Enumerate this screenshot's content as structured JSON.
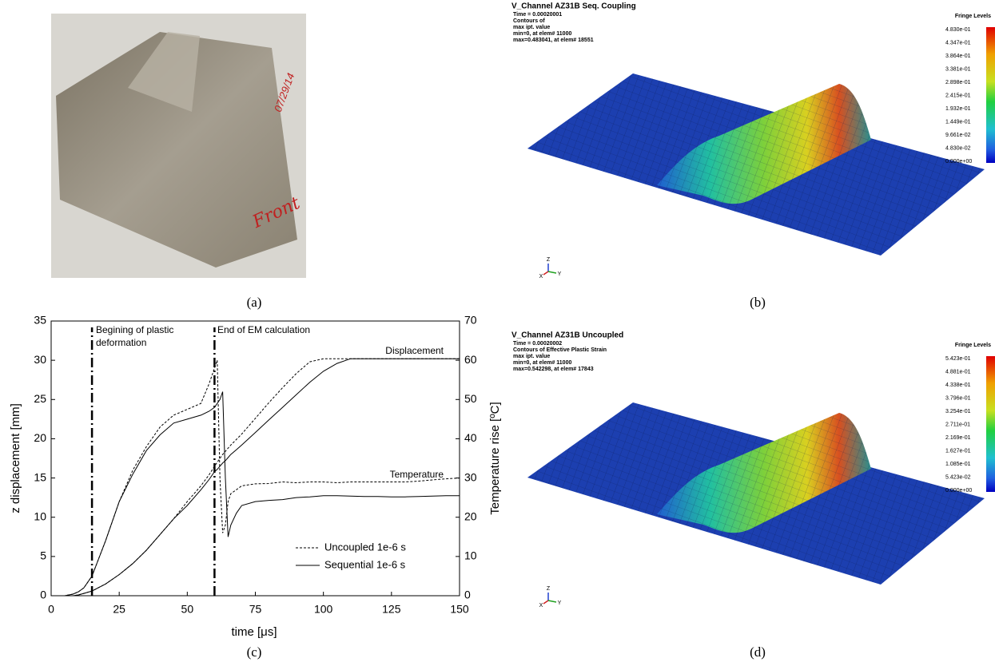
{
  "chart_data": {
    "type": "line",
    "caption": "(c)",
    "xlabel": "time [μs]",
    "ylabel": "z displacement [mm]",
    "y2label": "Temperature rise [ºC]",
    "xlim": [
      0,
      150
    ],
    "xticks": [
      0,
      25,
      50,
      75,
      100,
      125,
      150
    ],
    "ylim": [
      0,
      35
    ],
    "yticks": [
      0,
      5,
      10,
      15,
      20,
      25,
      30,
      35
    ],
    "y2lim": [
      0,
      70
    ],
    "y2ticks": [
      0,
      10,
      20,
      30,
      40,
      50,
      60,
      70
    ],
    "vlines": [
      15,
      60
    ],
    "annotations": [
      {
        "lines": [
          "Begining of plastic",
          "deformation"
        ]
      },
      {
        "lines": [
          "End of EM calculation"
        ]
      },
      {
        "lines": [
          "Displacement"
        ]
      },
      {
        "lines": [
          "Temperature"
        ]
      }
    ],
    "x": [
      0,
      5,
      8,
      10,
      12,
      15,
      20,
      25,
      30,
      35,
      40,
      45,
      50,
      55,
      58,
      60,
      61,
      62,
      63,
      64,
      65,
      66,
      68,
      70,
      75,
      80,
      85,
      90,
      95,
      100,
      105,
      110,
      115,
      120,
      125,
      130,
      135,
      140,
      145,
      150
    ],
    "series": [
      {
        "name": "Uncoupled 1e-6 s",
        "color": "#000000",
        "dash": "dashed",
        "values": [
          0,
          0,
          0,
          0.1,
          0.3,
          0.6,
          1.5,
          2.7,
          4.1,
          5.8,
          7.8,
          9.8,
          12,
          14,
          15.4,
          16.5,
          17,
          17.5,
          18,
          18.4,
          18.8,
          19.2,
          19.9,
          20.6,
          22.6,
          24.6,
          26.5,
          28.3,
          29.8,
          30.2,
          30.2,
          30.2,
          30.2,
          30.2,
          30.2,
          30.2,
          30.2,
          30.2,
          30.2,
          30.2
        ],
        "y2_values": [
          0,
          0,
          0.4,
          1,
          2,
          5,
          14,
          24,
          32,
          38,
          43,
          46,
          47.5,
          49,
          54,
          58,
          60,
          30,
          16,
          18,
          24,
          26,
          27,
          28,
          28.5,
          28.6,
          29,
          28.8,
          29,
          29,
          28.8,
          29,
          29,
          29,
          29,
          29,
          29.2,
          29.5,
          29.8,
          30
        ]
      },
      {
        "name": "Sequential 1e-6 s",
        "color": "#000000",
        "dash": "solid",
        "values": [
          0,
          0,
          0,
          0.1,
          0.3,
          0.6,
          1.5,
          2.7,
          4.1,
          5.8,
          7.8,
          9.8,
          11.5,
          13.5,
          14.8,
          15.8,
          16.1,
          16.5,
          16.9,
          17.2,
          17.6,
          18,
          18.6,
          19.2,
          20.8,
          22.4,
          24,
          25.6,
          27.2,
          28.6,
          29.6,
          30.2,
          30.2,
          30.2,
          30.2,
          30.2,
          30.2,
          30.2,
          30.2,
          30.2
        ],
        "y2_values": [
          0,
          0,
          0.4,
          1,
          2,
          5,
          14,
          24,
          31,
          37,
          41,
          44,
          45,
          46,
          47,
          48,
          49,
          50,
          52,
          30,
          15,
          18,
          21,
          23,
          24,
          24.3,
          24.5,
          25,
          25.2,
          25.5,
          25.5,
          25.4,
          25.3,
          25.3,
          25.2,
          25.2,
          25.3,
          25.4,
          25.5,
          25.5
        ]
      }
    ]
  },
  "panels": {
    "a": {
      "caption": "(a)",
      "handwriting": [
        "Front",
        "07/29/14"
      ]
    },
    "b": {
      "caption": "(b)",
      "title": "V_Channel AZ31B Seq. Coupling",
      "info": [
        "Time =  0.00020001",
        "Contours of",
        "max ipt. value",
        "min=0, at elem# 11000",
        "max=0.483041, at elem# 18551"
      ],
      "fringe_title": "Fringe Levels",
      "fringe_levels": [
        "4.830e-01",
        "4.347e-01",
        "3.864e-01",
        "3.381e-01",
        "2.898e-01",
        "2.415e-01",
        "1.932e-01",
        "1.449e-01",
        "9.661e-02",
        "4.830e-02",
        "0.000e+00"
      ],
      "triad": [
        "Z",
        "X",
        "Y"
      ]
    },
    "d": {
      "caption": "(d)",
      "title": "V_Channel AZ31B Uncoupled",
      "info": [
        "Time =  0.00020002",
        "Contours of Effective Plastic Strain",
        "max ipt. value",
        "min=0, at elem# 11000",
        "max=0.542298, at elem# 17843"
      ],
      "fringe_title": "Fringe Levels",
      "fringe_levels": [
        "5.423e-01",
        "4.881e-01",
        "4.338e-01",
        "3.796e-01",
        "3.254e-01",
        "2.711e-01",
        "2.169e-01",
        "1.627e-01",
        "1.085e-01",
        "5.423e-02",
        "0.000e+00"
      ],
      "triad": [
        "Z",
        "X",
        "Y"
      ]
    }
  }
}
